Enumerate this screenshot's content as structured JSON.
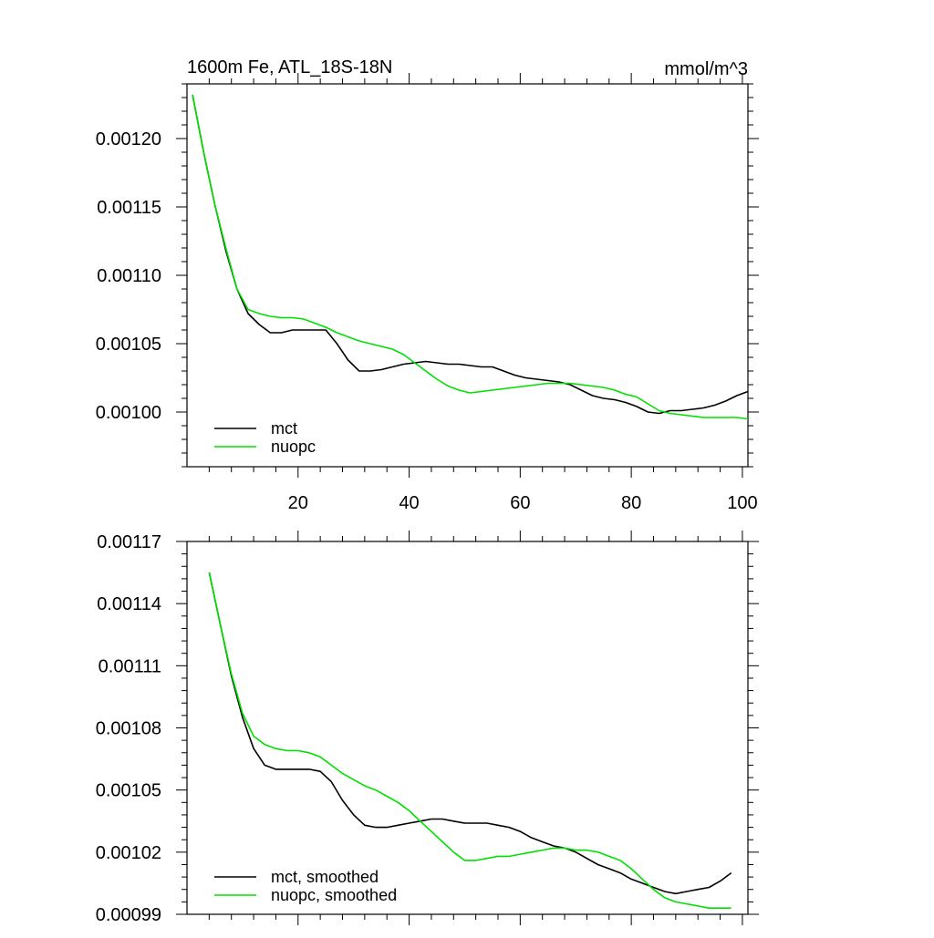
{
  "colors": {
    "mct": "#000000",
    "nuopc": "#00e000",
    "axis": "#000000",
    "background": "#ffffff"
  },
  "chart_data": [
    {
      "type": "line",
      "title": "1600m Fe, ATL_18S-18N",
      "units": "mmol/m^3",
      "xlabel": "",
      "ylabel": "",
      "xlim": [
        0,
        101
      ],
      "ylim": [
        0.00096,
        0.00124
      ],
      "xticks": [
        20,
        40,
        60,
        80,
        100
      ],
      "xtick_labels": [
        "20",
        "40",
        "60",
        "80",
        "100"
      ],
      "yticks": [
        0.001,
        0.00105,
        0.0011,
        0.00115,
        0.0012
      ],
      "ytick_labels": [
        "0.00100",
        "0.00105",
        "0.00110",
        "0.00115",
        "0.00120"
      ],
      "legend_position": "bottom-left",
      "series": [
        {
          "name": "mct",
          "label": "mct",
          "color": "#000000",
          "x": [
            1,
            3,
            5,
            7,
            9,
            11,
            13,
            15,
            17,
            19,
            21,
            23,
            25,
            27,
            29,
            31,
            33,
            35,
            37,
            39,
            41,
            43,
            45,
            47,
            49,
            51,
            53,
            55,
            57,
            59,
            61,
            63,
            65,
            67,
            69,
            71,
            73,
            75,
            77,
            79,
            81,
            83,
            85,
            87,
            89,
            91,
            93,
            95,
            97,
            99,
            101
          ],
          "y": [
            0.001232,
            0.00119,
            0.001152,
            0.001118,
            0.00109,
            0.001072,
            0.001064,
            0.001058,
            0.001058,
            0.00106,
            0.00106,
            0.00106,
            0.00106,
            0.00105,
            0.001038,
            0.00103,
            0.00103,
            0.001031,
            0.001033,
            0.001035,
            0.001036,
            0.001037,
            0.001036,
            0.001035,
            0.001035,
            0.001034,
            0.001033,
            0.001033,
            0.00103,
            0.001027,
            0.001025,
            0.001024,
            0.001023,
            0.001022,
            0.00102,
            0.001016,
            0.001012,
            0.00101,
            0.001009,
            0.001007,
            0.001004,
            0.001,
            0.000999,
            0.001001,
            0.001001,
            0.001002,
            0.001003,
            0.001005,
            0.001008,
            0.001012,
            0.001015
          ]
        },
        {
          "name": "nuopc",
          "label": "nuopc",
          "color": "#00e000",
          "x": [
            1,
            3,
            5,
            7,
            9,
            11,
            13,
            15,
            17,
            19,
            21,
            23,
            25,
            27,
            29,
            31,
            33,
            35,
            37,
            39,
            41,
            43,
            45,
            47,
            49,
            51,
            53,
            55,
            57,
            59,
            61,
            63,
            65,
            67,
            69,
            71,
            73,
            75,
            77,
            79,
            81,
            83,
            85,
            87,
            89,
            91,
            93,
            95,
            97,
            99,
            101
          ],
          "y": [
            0.001232,
            0.00119,
            0.001152,
            0.00112,
            0.00109,
            0.001075,
            0.001072,
            0.00107,
            0.001069,
            0.001069,
            0.001068,
            0.001065,
            0.001062,
            0.001058,
            0.001055,
            0.001052,
            0.00105,
            0.001048,
            0.001046,
            0.001042,
            0.001036,
            0.00103,
            0.001024,
            0.001019,
            0.001016,
            0.001014,
            0.001015,
            0.001016,
            0.001017,
            0.001018,
            0.001019,
            0.00102,
            0.001021,
            0.001021,
            0.001021,
            0.00102,
            0.001019,
            0.001018,
            0.001016,
            0.001013,
            0.001011,
            0.001006,
            0.001001,
            0.000999,
            0.000998,
            0.000997,
            0.000996,
            0.000996,
            0.000996,
            0.000996,
            0.000995
          ]
        }
      ]
    },
    {
      "type": "line",
      "title": "",
      "xlabel": "",
      "ylabel": "",
      "xlim": [
        0,
        101
      ],
      "ylim": [
        0.00099,
        0.00117
      ],
      "xticks": [
        20,
        40,
        60,
        80,
        100
      ],
      "xtick_labels": [],
      "yticks": [
        0.00099,
        0.00102,
        0.00105,
        0.00108,
        0.00111,
        0.00114,
        0.00117
      ],
      "ytick_labels": [
        "0.00099",
        "0.00102",
        "0.00105",
        "0.00108",
        "0.00111",
        "0.00114",
        "0.00117"
      ],
      "legend_position": "bottom-left",
      "series": [
        {
          "name": "mct, smoothed",
          "label": "mct, smoothed",
          "color": "#000000",
          "x": [
            4,
            6,
            8,
            10,
            12,
            14,
            16,
            18,
            20,
            22,
            24,
            26,
            28,
            30,
            32,
            34,
            36,
            38,
            40,
            42,
            44,
            46,
            48,
            50,
            52,
            54,
            56,
            58,
            60,
            62,
            64,
            66,
            68,
            70,
            72,
            74,
            76,
            78,
            80,
            82,
            84,
            86,
            88,
            90,
            92,
            94,
            96,
            98
          ],
          "y": [
            0.001155,
            0.00113,
            0.001105,
            0.001085,
            0.00107,
            0.001062,
            0.00106,
            0.00106,
            0.00106,
            0.00106,
            0.001059,
            0.001054,
            0.001045,
            0.001038,
            0.001033,
            0.001032,
            0.001032,
            0.001033,
            0.001034,
            0.001035,
            0.001036,
            0.001036,
            0.001035,
            0.001034,
            0.001034,
            0.001034,
            0.001033,
            0.001032,
            0.00103,
            0.001027,
            0.001025,
            0.001023,
            0.001022,
            0.00102,
            0.001017,
            0.001014,
            0.001012,
            0.00101,
            0.001007,
            0.001005,
            0.001003,
            0.001001,
            0.001,
            0.001001,
            0.001002,
            0.001003,
            0.001006,
            0.00101
          ]
        },
        {
          "name": "nuopc, smoothed",
          "label": "nuopc, smoothed",
          "color": "#00e000",
          "x": [
            4,
            6,
            8,
            10,
            12,
            14,
            16,
            18,
            20,
            22,
            24,
            26,
            28,
            30,
            32,
            34,
            36,
            38,
            40,
            42,
            44,
            46,
            48,
            50,
            52,
            54,
            56,
            58,
            60,
            62,
            64,
            66,
            68,
            70,
            72,
            74,
            76,
            78,
            80,
            82,
            84,
            86,
            88,
            90,
            92,
            94,
            96,
            98
          ],
          "y": [
            0.001155,
            0.00113,
            0.001106,
            0.001087,
            0.001076,
            0.001072,
            0.00107,
            0.001069,
            0.001069,
            0.001068,
            0.001066,
            0.001062,
            0.001058,
            0.001055,
            0.001052,
            0.00105,
            0.001047,
            0.001044,
            0.00104,
            0.001035,
            0.00103,
            0.001025,
            0.00102,
            0.001016,
            0.001016,
            0.001017,
            0.001018,
            0.001018,
            0.001019,
            0.00102,
            0.001021,
            0.001022,
            0.001022,
            0.001021,
            0.001021,
            0.00102,
            0.001018,
            0.001016,
            0.001012,
            0.001007,
            0.001002,
            0.000998,
            0.000996,
            0.000995,
            0.000994,
            0.000993,
            0.000993,
            0.000993
          ]
        }
      ]
    }
  ]
}
